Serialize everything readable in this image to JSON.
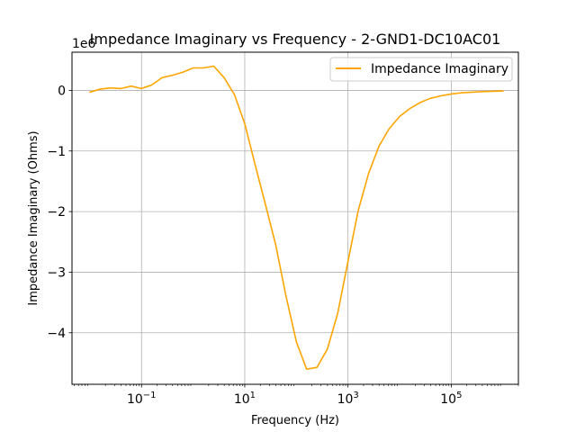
{
  "chart_data": {
    "type": "line",
    "title": "Impedance Imaginary vs Frequency - 2-GND1-DC10AC01",
    "xlabel": "Frequency (Hz)",
    "ylabel": "Impedance Imaginary (Ohms)",
    "x_scale": "log",
    "xlim": [
      0.0045,
      2000000
    ],
    "ylim": [
      -4.85,
      0.63
    ],
    "y_offset_label": "1e6",
    "grid": true,
    "legend_position": "top-right",
    "x_ticks": [
      {
        "value": 0.1,
        "base": "10",
        "exp": "−1"
      },
      {
        "value": 10,
        "base": "10",
        "exp": "1"
      },
      {
        "value": 1000,
        "base": "10",
        "exp": "3"
      },
      {
        "value": 100000,
        "base": "10",
        "exp": "5"
      }
    ],
    "y_ticks": [
      {
        "value": 0,
        "label": "0"
      },
      {
        "value": -1,
        "label": "−1"
      },
      {
        "value": -2,
        "label": "−2"
      },
      {
        "value": -3,
        "label": "−3"
      },
      {
        "value": -4,
        "label": "−4"
      }
    ],
    "series": [
      {
        "name": "Impedance Imaginary",
        "color": "#ffa500",
        "x": [
          0.01,
          0.0158,
          0.0251,
          0.0398,
          0.0631,
          0.1,
          0.158,
          0.251,
          0.398,
          0.631,
          1.0,
          1.58,
          2.51,
          3.98,
          6.31,
          10,
          15.8,
          25.1,
          39.8,
          63.1,
          100,
          158,
          251,
          398,
          631,
          1000,
          1580,
          2510,
          3980,
          6310,
          10000,
          15800,
          25100,
          39800,
          63100,
          100000,
          158000,
          251000,
          398000,
          631000,
          1000000
        ],
        "y": [
          -0.03,
          0.02,
          0.04,
          0.03,
          0.07,
          0.03,
          0.09,
          0.21,
          0.25,
          0.3,
          0.37,
          0.37,
          0.4,
          0.21,
          -0.07,
          -0.55,
          -1.22,
          -1.88,
          -2.55,
          -3.4,
          -4.15,
          -4.6,
          -4.57,
          -4.27,
          -3.68,
          -2.82,
          -1.98,
          -1.37,
          -0.92,
          -0.63,
          -0.43,
          -0.3,
          -0.2,
          -0.13,
          -0.09,
          -0.06,
          -0.04,
          -0.03,
          -0.02,
          -0.015,
          -0.01
        ]
      }
    ]
  }
}
